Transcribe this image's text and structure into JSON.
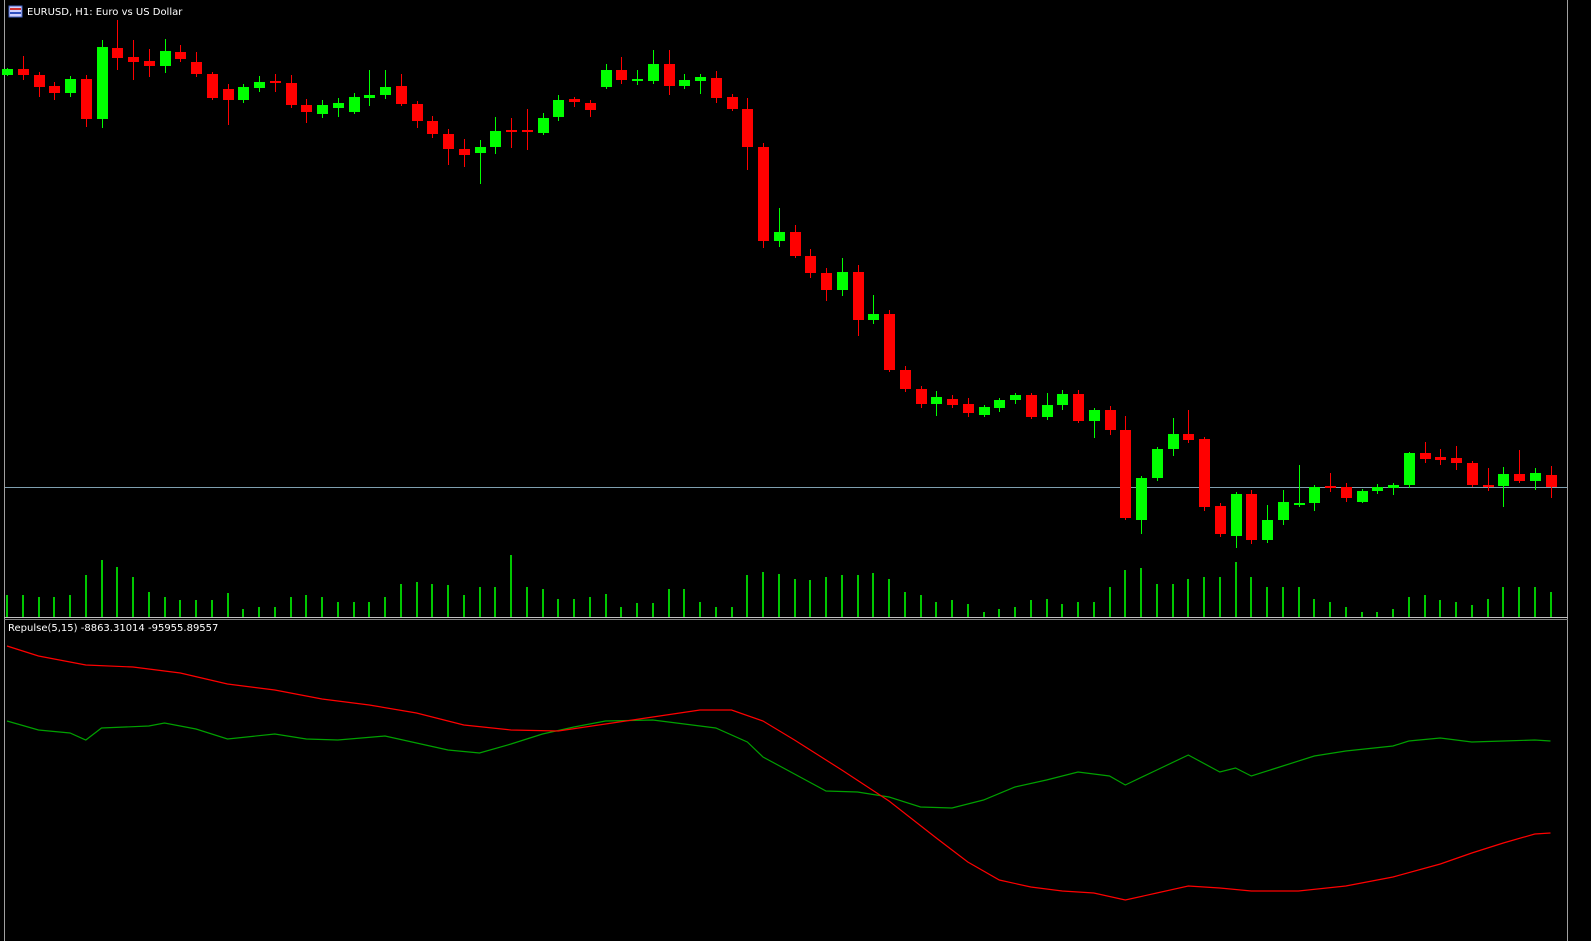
{
  "chart_data": [
    {
      "type": "candlestick",
      "title": "EURUSD, H1:  Euro vs US Dollar",
      "open": [
        542,
        548,
        542,
        531,
        524,
        538,
        498,
        569,
        560,
        556,
        551,
        565,
        555,
        543,
        528,
        517,
        529,
        536,
        534,
        512,
        503,
        509,
        505,
        519,
        522,
        531,
        513,
        496,
        483,
        468,
        464,
        470,
        487,
        487,
        484,
        500,
        518,
        514,
        530,
        547,
        536,
        536,
        553,
        531,
        536,
        539,
        520,
        508,
        470,
        376,
        385,
        361,
        344,
        327,
        345,
        297,
        303,
        247,
        228,
        213,
        218,
        213,
        202,
        209,
        217,
        222,
        200,
        212,
        223,
        196,
        207,
        187,
        97,
        139,
        168,
        183,
        178,
        111,
        81,
        123,
        77,
        97,
        112,
        114,
        131,
        130,
        115,
        126,
        129,
        132,
        164,
        160,
        159,
        154,
        132,
        131,
        143,
        136,
        142
      ],
      "high": [
        549,
        561,
        545,
        535,
        541,
        542,
        577,
        597,
        577,
        568,
        578,
        572,
        565,
        545,
        533,
        533,
        541,
        543,
        542,
        518,
        517,
        519,
        524,
        547,
        547,
        543,
        516,
        501,
        488,
        478,
        477,
        500,
        499,
        508,
        504,
        522,
        520,
        517,
        553,
        560,
        547,
        567,
        567,
        543,
        543,
        546,
        523,
        519,
        474,
        409,
        392,
        368,
        349,
        359,
        352,
        322,
        307,
        251,
        231,
        226,
        222,
        219,
        212,
        219,
        224,
        224,
        224,
        227,
        227,
        209,
        211,
        201,
        141,
        170,
        199,
        207,
        180,
        114,
        125,
        127,
        112,
        127,
        152,
        132,
        144,
        134,
        128,
        133,
        134,
        165,
        175,
        168,
        171,
        156,
        149,
        150,
        167,
        149,
        151
      ],
      "low": [
        541,
        537,
        520,
        517,
        520,
        490,
        489,
        547,
        537,
        540,
        544,
        555,
        540,
        517,
        492,
        514,
        525,
        525,
        509,
        494,
        499,
        500,
        503,
        511,
        518,
        511,
        489,
        479,
        452,
        450,
        433,
        463,
        469,
        467,
        482,
        496,
        510,
        500,
        528,
        533,
        532,
        533,
        522,
        528,
        523,
        514,
        506,
        447,
        369,
        370,
        359,
        339,
        316,
        321,
        281,
        293,
        245,
        225,
        209,
        201,
        209,
        200,
        200,
        205,
        213,
        198,
        197,
        207,
        194,
        179,
        182,
        97,
        83,
        136,
        161,
        174,
        106,
        80,
        69,
        73,
        74,
        92,
        110,
        106,
        125,
        115,
        114,
        123,
        122,
        129,
        154,
        152,
        147,
        130,
        126,
        110,
        134,
        127,
        119
      ],
      "close": [
        548,
        542,
        530,
        524,
        538,
        498,
        570,
        559,
        555,
        551,
        566,
        558,
        543,
        519,
        517,
        530,
        535,
        534,
        512,
        505,
        512,
        514,
        520,
        522,
        530,
        513,
        496,
        483,
        468,
        462,
        470,
        486,
        485,
        485,
        499,
        517,
        515,
        507,
        547,
        537,
        538,
        553,
        531,
        537,
        540,
        519,
        508,
        470,
        376,
        385,
        361,
        344,
        327,
        345,
        297,
        303,
        247,
        228,
        213,
        220,
        212,
        204,
        210,
        217,
        222,
        200,
        212,
        223,
        196,
        207,
        187,
        99,
        139,
        168,
        183,
        177,
        110,
        83,
        123,
        77,
        97,
        115,
        114,
        130,
        129,
        119,
        126,
        130,
        132,
        164,
        158,
        157,
        154,
        132,
        130,
        143,
        136,
        144,
        130
      ],
      "up_color": "#00ff00",
      "down_color": "#ff0000",
      "ylim": [
        0,
        617
      ],
      "hline": 130,
      "hline_color": "#7f9fb0"
    },
    {
      "type": "bar",
      "values": [
        22,
        22,
        20,
        20,
        22,
        42,
        57,
        50,
        40,
        25,
        20,
        17,
        17,
        17,
        24,
        8,
        10,
        10,
        20,
        22,
        20,
        15,
        15,
        15,
        20,
        33,
        35,
        33,
        32,
        22,
        30,
        30,
        62,
        30,
        28,
        18,
        18,
        20,
        23,
        10,
        14,
        14,
        28,
        28,
        15,
        10,
        10,
        42,
        45,
        43,
        38,
        37,
        40,
        42,
        42,
        44,
        38,
        25,
        22,
        15,
        17,
        13,
        5,
        8,
        10,
        17,
        18,
        13,
        15,
        15,
        30,
        47,
        49,
        33,
        33,
        38,
        40,
        40,
        55,
        40,
        30,
        30,
        30,
        18,
        15,
        10,
        5,
        5,
        8,
        20,
        22,
        17,
        15,
        12,
        18,
        30,
        30,
        30,
        25
      ],
      "color": "#00c800",
      "ylim": [
        0,
        200
      ]
    },
    {
      "type": "line",
      "title": "Repulse(5,15)",
      "xlim": [
        0,
        98
      ],
      "ylim": [
        -184949,
        105688
      ],
      "series": [
        {
          "color": "#00a000",
          "x": [
            0,
            2,
            4,
            5,
            6,
            9,
            10,
            12,
            14,
            17,
            19,
            21,
            24,
            26,
            28,
            30,
            32,
            34,
            36,
            38,
            41,
            43,
            45,
            47,
            48,
            50,
            52,
            54,
            56,
            58,
            60,
            62,
            64,
            66,
            68,
            70,
            71,
            73,
            75,
            77,
            78,
            79,
            81,
            83,
            85,
            88,
            89,
            91,
            93,
            95,
            97,
            98
          ],
          "values": [
            10071,
            1551,
            -1289,
            -7916,
            3444,
            5338,
            8178,
            2497,
            -6970,
            -2236,
            -6970,
            -7916,
            -4129,
            -10756,
            -17383,
            -20223,
            -11703,
            -2236,
            4391,
            10071,
            11018,
            7231,
            3444,
            -9810,
            -24010,
            -40104,
            -56198,
            -57145,
            -61878,
            -71345,
            -72292,
            -64718,
            -52411,
            -45784,
            -38211,
            -41998,
            -50518,
            -36317,
            -22117,
            -38211,
            -34424,
            -41998,
            -32531,
            -23064,
            -18330,
            -13597,
            -8863,
            -6023,
            -9810,
            -8863,
            -7916,
            -8863.31014
          ]
        },
        {
          "color": "#ff0000",
          "x": [
            0,
            2,
            5,
            8,
            11,
            14,
            17,
            20,
            23,
            26,
            29,
            32,
            35,
            38,
            41,
            44,
            46,
            48,
            50,
            53,
            56,
            59,
            61,
            63,
            65,
            67,
            69,
            71,
            73,
            75,
            77,
            79,
            82,
            85,
            88,
            91,
            93,
            95,
            97,
            98
          ],
          "values": [
            81074,
            71607,
            63086,
            61193,
            55513,
            45099,
            39419,
            30898,
            25218,
            17645,
            6284,
            1551,
            604,
            7231,
            13858,
            20485,
            20485,
            10071,
            -7916,
            -36317,
            -65665,
            -100693,
            -123414,
            -140454,
            -147081,
            -150868,
            -152761,
            -159388,
            -152761,
            -146135,
            -148028,
            -150868,
            -150868,
            -146135,
            -137614,
            -125307,
            -114893,
            -105426,
            -96906,
            -95955.89557
          ]
        }
      ]
    }
  ]
}
